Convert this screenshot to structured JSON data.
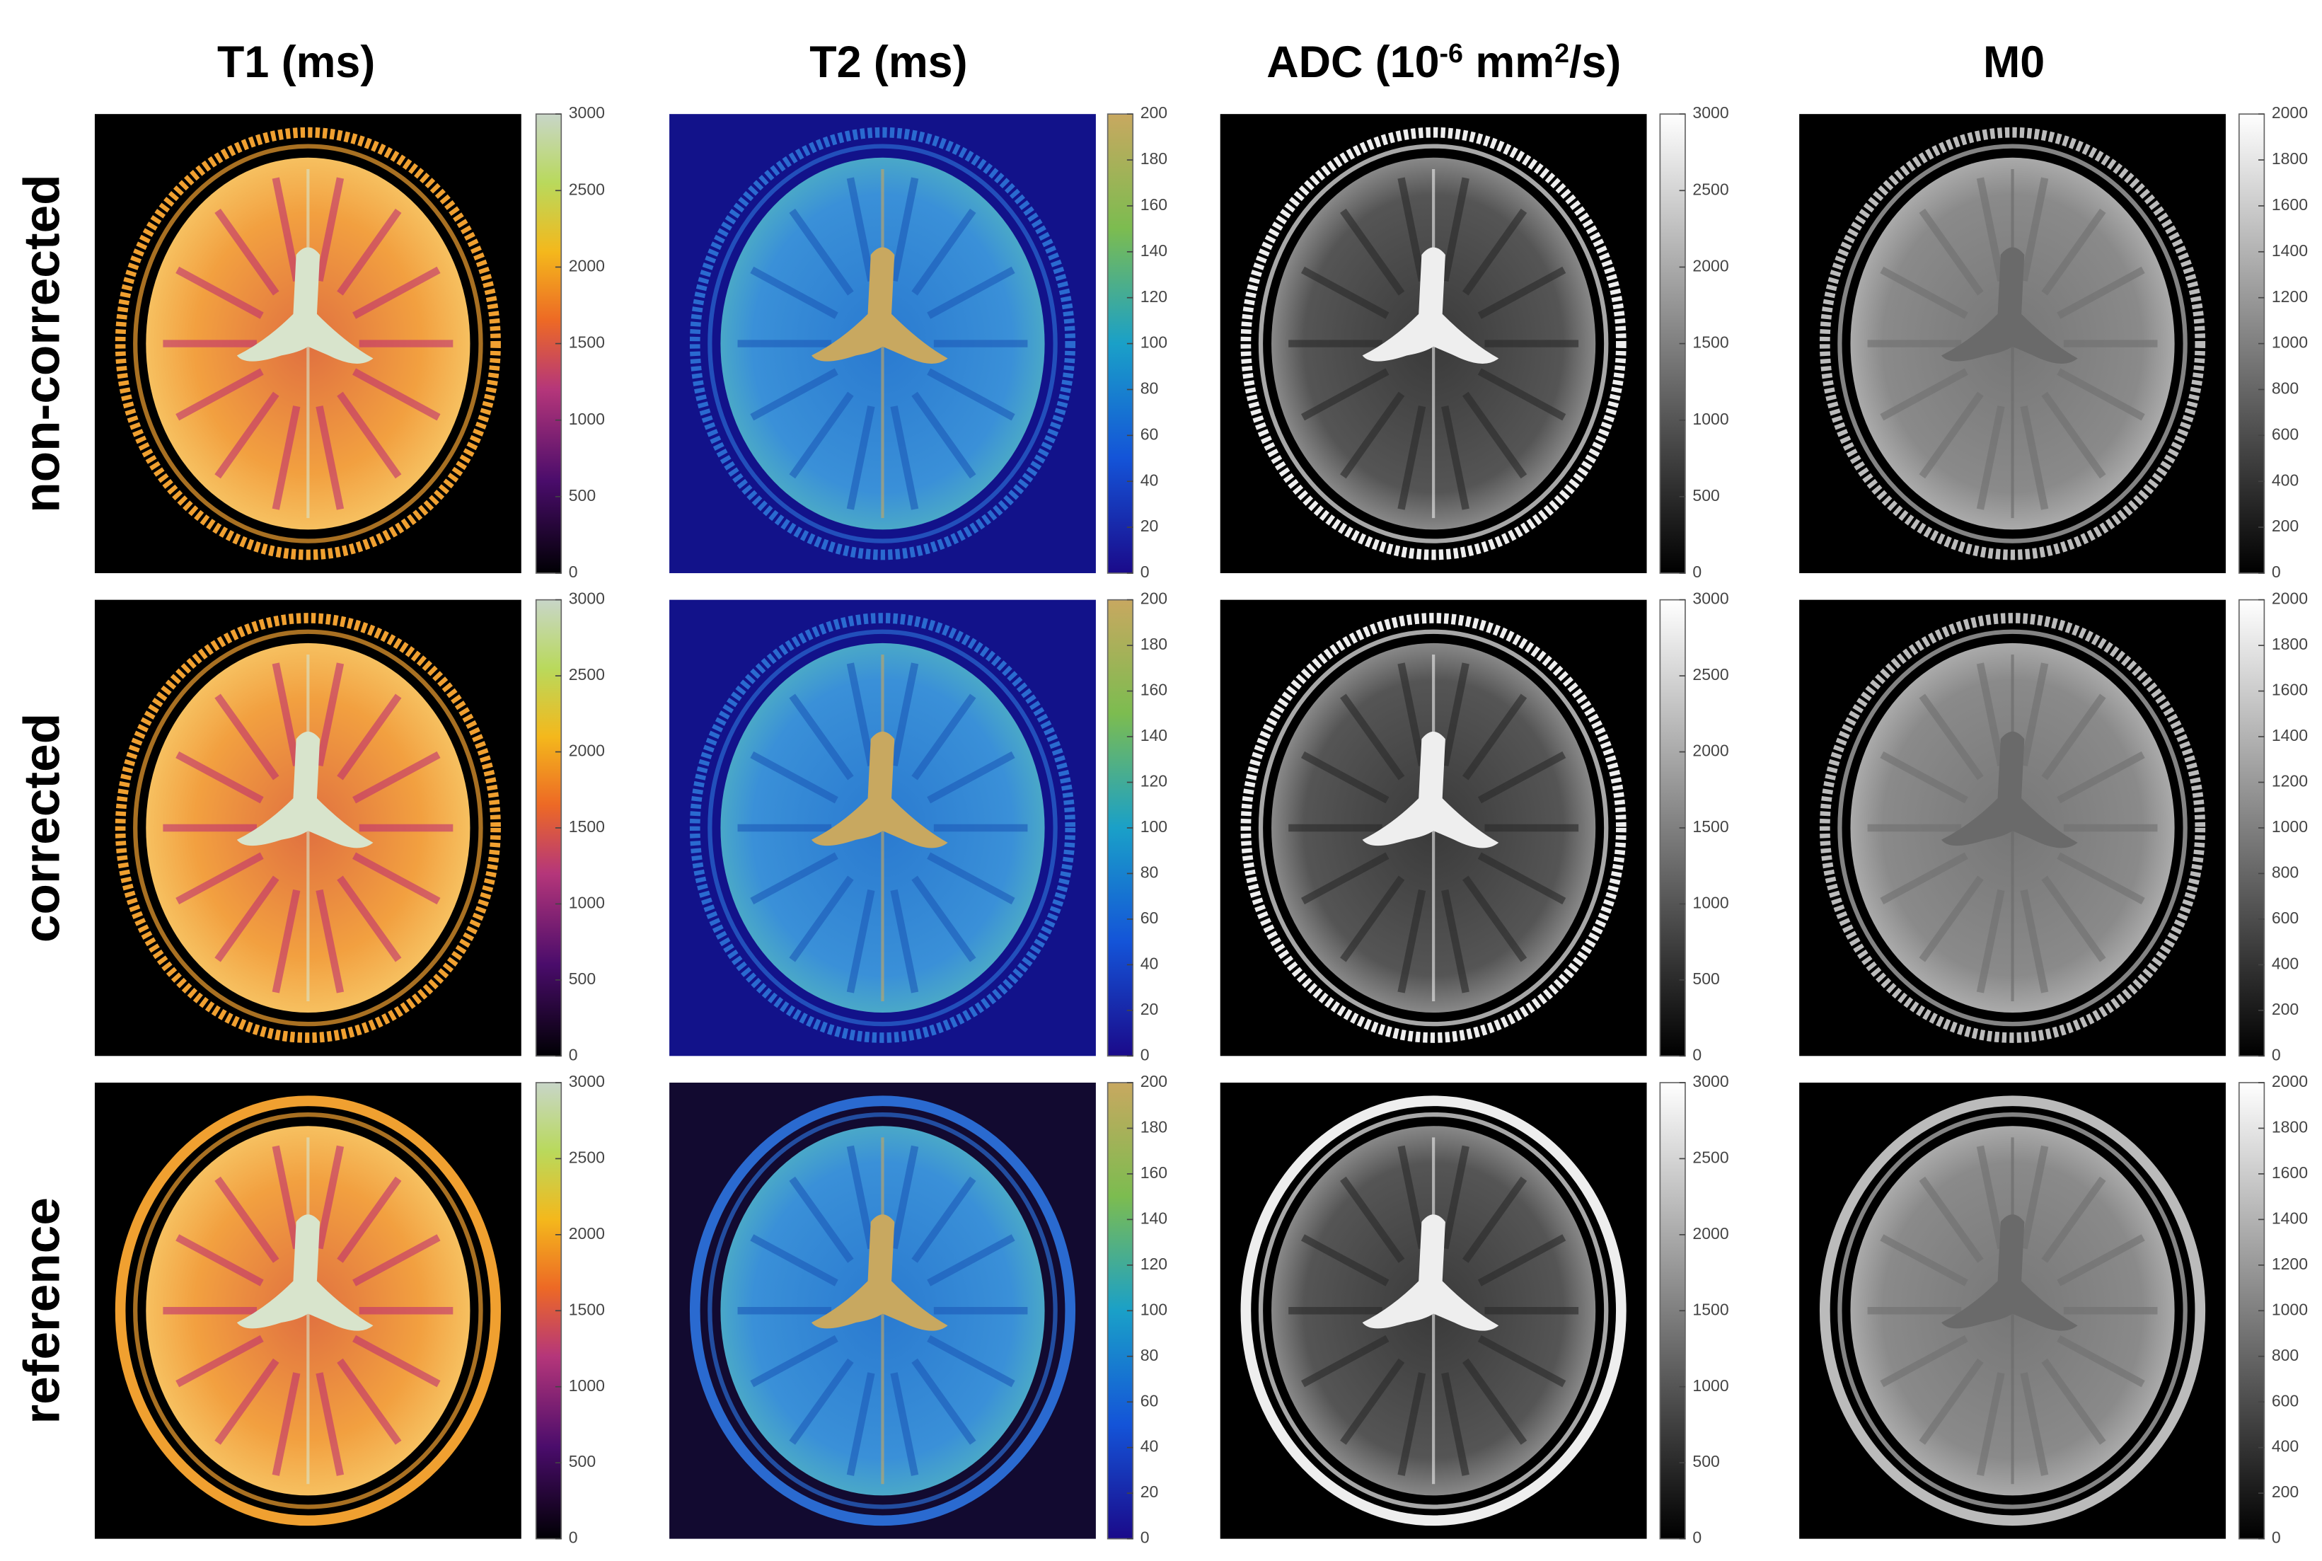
{
  "columns": [
    {
      "title": [
        {
          "text": "T1 (ms)"
        }
      ],
      "colorbar": {
        "clim": [
          0,
          3000
        ],
        "ticks": [
          0,
          500,
          1000,
          1500,
          2000,
          2500,
          3000
        ]
      }
    },
    {
      "title": [
        {
          "text": "T2 (ms)"
        }
      ],
      "colorbar": {
        "clim": [
          0,
          200
        ],
        "ticks": [
          0,
          20,
          40,
          60,
          80,
          100,
          120,
          140,
          160,
          180,
          200
        ]
      }
    },
    {
      "title": [
        {
          "text": "ADC (10"
        },
        {
          "text": "-6",
          "sup": true
        },
        {
          "text": " mm"
        },
        {
          "text": "2",
          "sup": true
        },
        {
          "text": "/s)"
        }
      ],
      "colorbar": {
        "clim": [
          0,
          3000
        ],
        "ticks": [
          0,
          500,
          1000,
          1500,
          2000,
          2500,
          3000
        ]
      }
    },
    {
      "title": [
        {
          "text": "M0"
        }
      ],
      "colorbar": {
        "clim": [
          0,
          2000
        ],
        "ticks": [
          0,
          200,
          400,
          600,
          800,
          1000,
          1200,
          1400,
          1600,
          1800,
          2000
        ]
      }
    }
  ],
  "rows": [
    "non-corrected",
    "corrected",
    "reference"
  ]
}
